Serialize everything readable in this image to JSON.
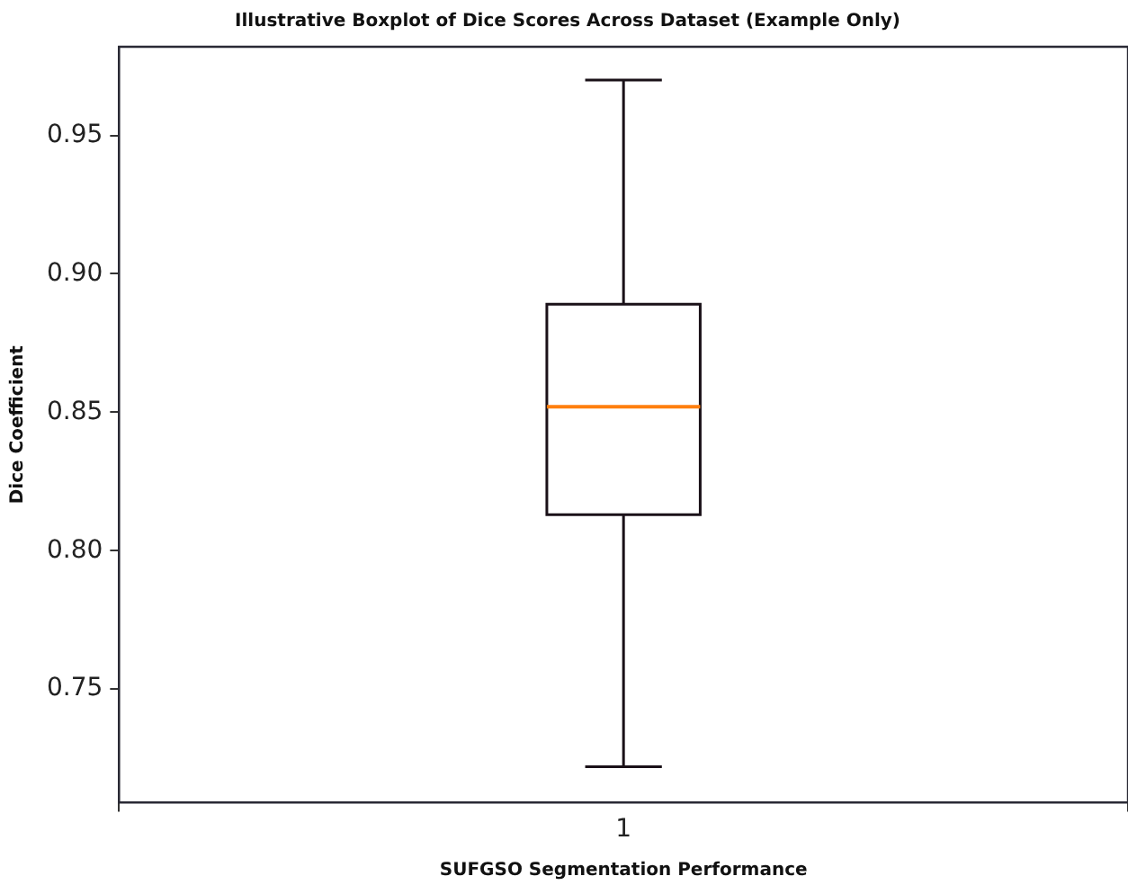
{
  "chart_data": {
    "type": "box",
    "title": "Illustrative Boxplot of Dice Scores Across Dataset (Example Only)",
    "xlabel": "SUFGSO Segmentation Performance",
    "ylabel": "Dice Coefficient",
    "categories": [
      "1"
    ],
    "series": [
      {
        "color": "#1a1118",
        "boxes": [
          {
            "low": 0.722,
            "q1": 0.813,
            "median": 0.852,
            "q3": 0.889,
            "high": 0.97
          }
        ]
      }
    ],
    "ylim": [
      0.709,
      0.982
    ],
    "yticks": [
      {
        "value": 0.75,
        "label": "0.75"
      },
      {
        "value": 0.8,
        "label": "0.80"
      },
      {
        "value": 0.85,
        "label": "0.85"
      },
      {
        "value": 0.9,
        "label": "0.90"
      },
      {
        "value": 0.95,
        "label": "0.95"
      }
    ],
    "grid": false,
    "legend": false
  }
}
